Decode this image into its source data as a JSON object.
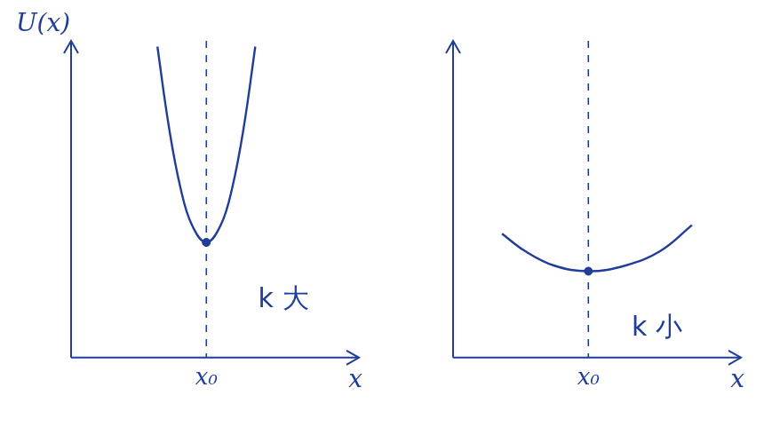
{
  "chart_data": [
    {
      "type": "line",
      "y_label": "U(x)",
      "x_label": "x",
      "x": [
        3.0,
        3.4,
        3.8,
        4.2,
        4.7,
        5.2,
        5.6,
        6.0,
        6.4
      ],
      "values": [
        10.8,
        8.0,
        5.9,
        4.6,
        4.0,
        4.6,
        5.9,
        8.0,
        10.8
      ],
      "highlight": {
        "x": 4.7,
        "y": 4.0
      },
      "color": "#1f3d99",
      "xlim": [
        0,
        10
      ],
      "ylim": [
        0,
        11
      ],
      "xticks": [
        {
          "value": 4.7,
          "label": "x₀"
        }
      ],
      "grid": false,
      "tick_labels": "x",
      "marker": "none",
      "annotations": [
        {
          "text": "k 大",
          "x": 6.5,
          "y": 2.0
        }
      ]
    },
    {
      "type": "line",
      "x_label": "x",
      "x": [
        1.7,
        2.5,
        3.5,
        4.7,
        6.0,
        7.2,
        8.3
      ],
      "values": [
        4.3,
        3.7,
        3.2,
        3.0,
        3.2,
        3.7,
        4.6
      ],
      "highlight": {
        "x": 4.7,
        "y": 3.0
      },
      "color": "#1f3d99",
      "xlim": [
        0,
        10
      ],
      "ylim": [
        0,
        11
      ],
      "xticks": [
        {
          "value": 4.7,
          "label": "x₀"
        }
      ],
      "grid": false,
      "tick_labels": "x",
      "marker": "none",
      "annotations": [
        {
          "text": "k 小",
          "x": 6.2,
          "y": 1.0
        }
      ]
    }
  ]
}
